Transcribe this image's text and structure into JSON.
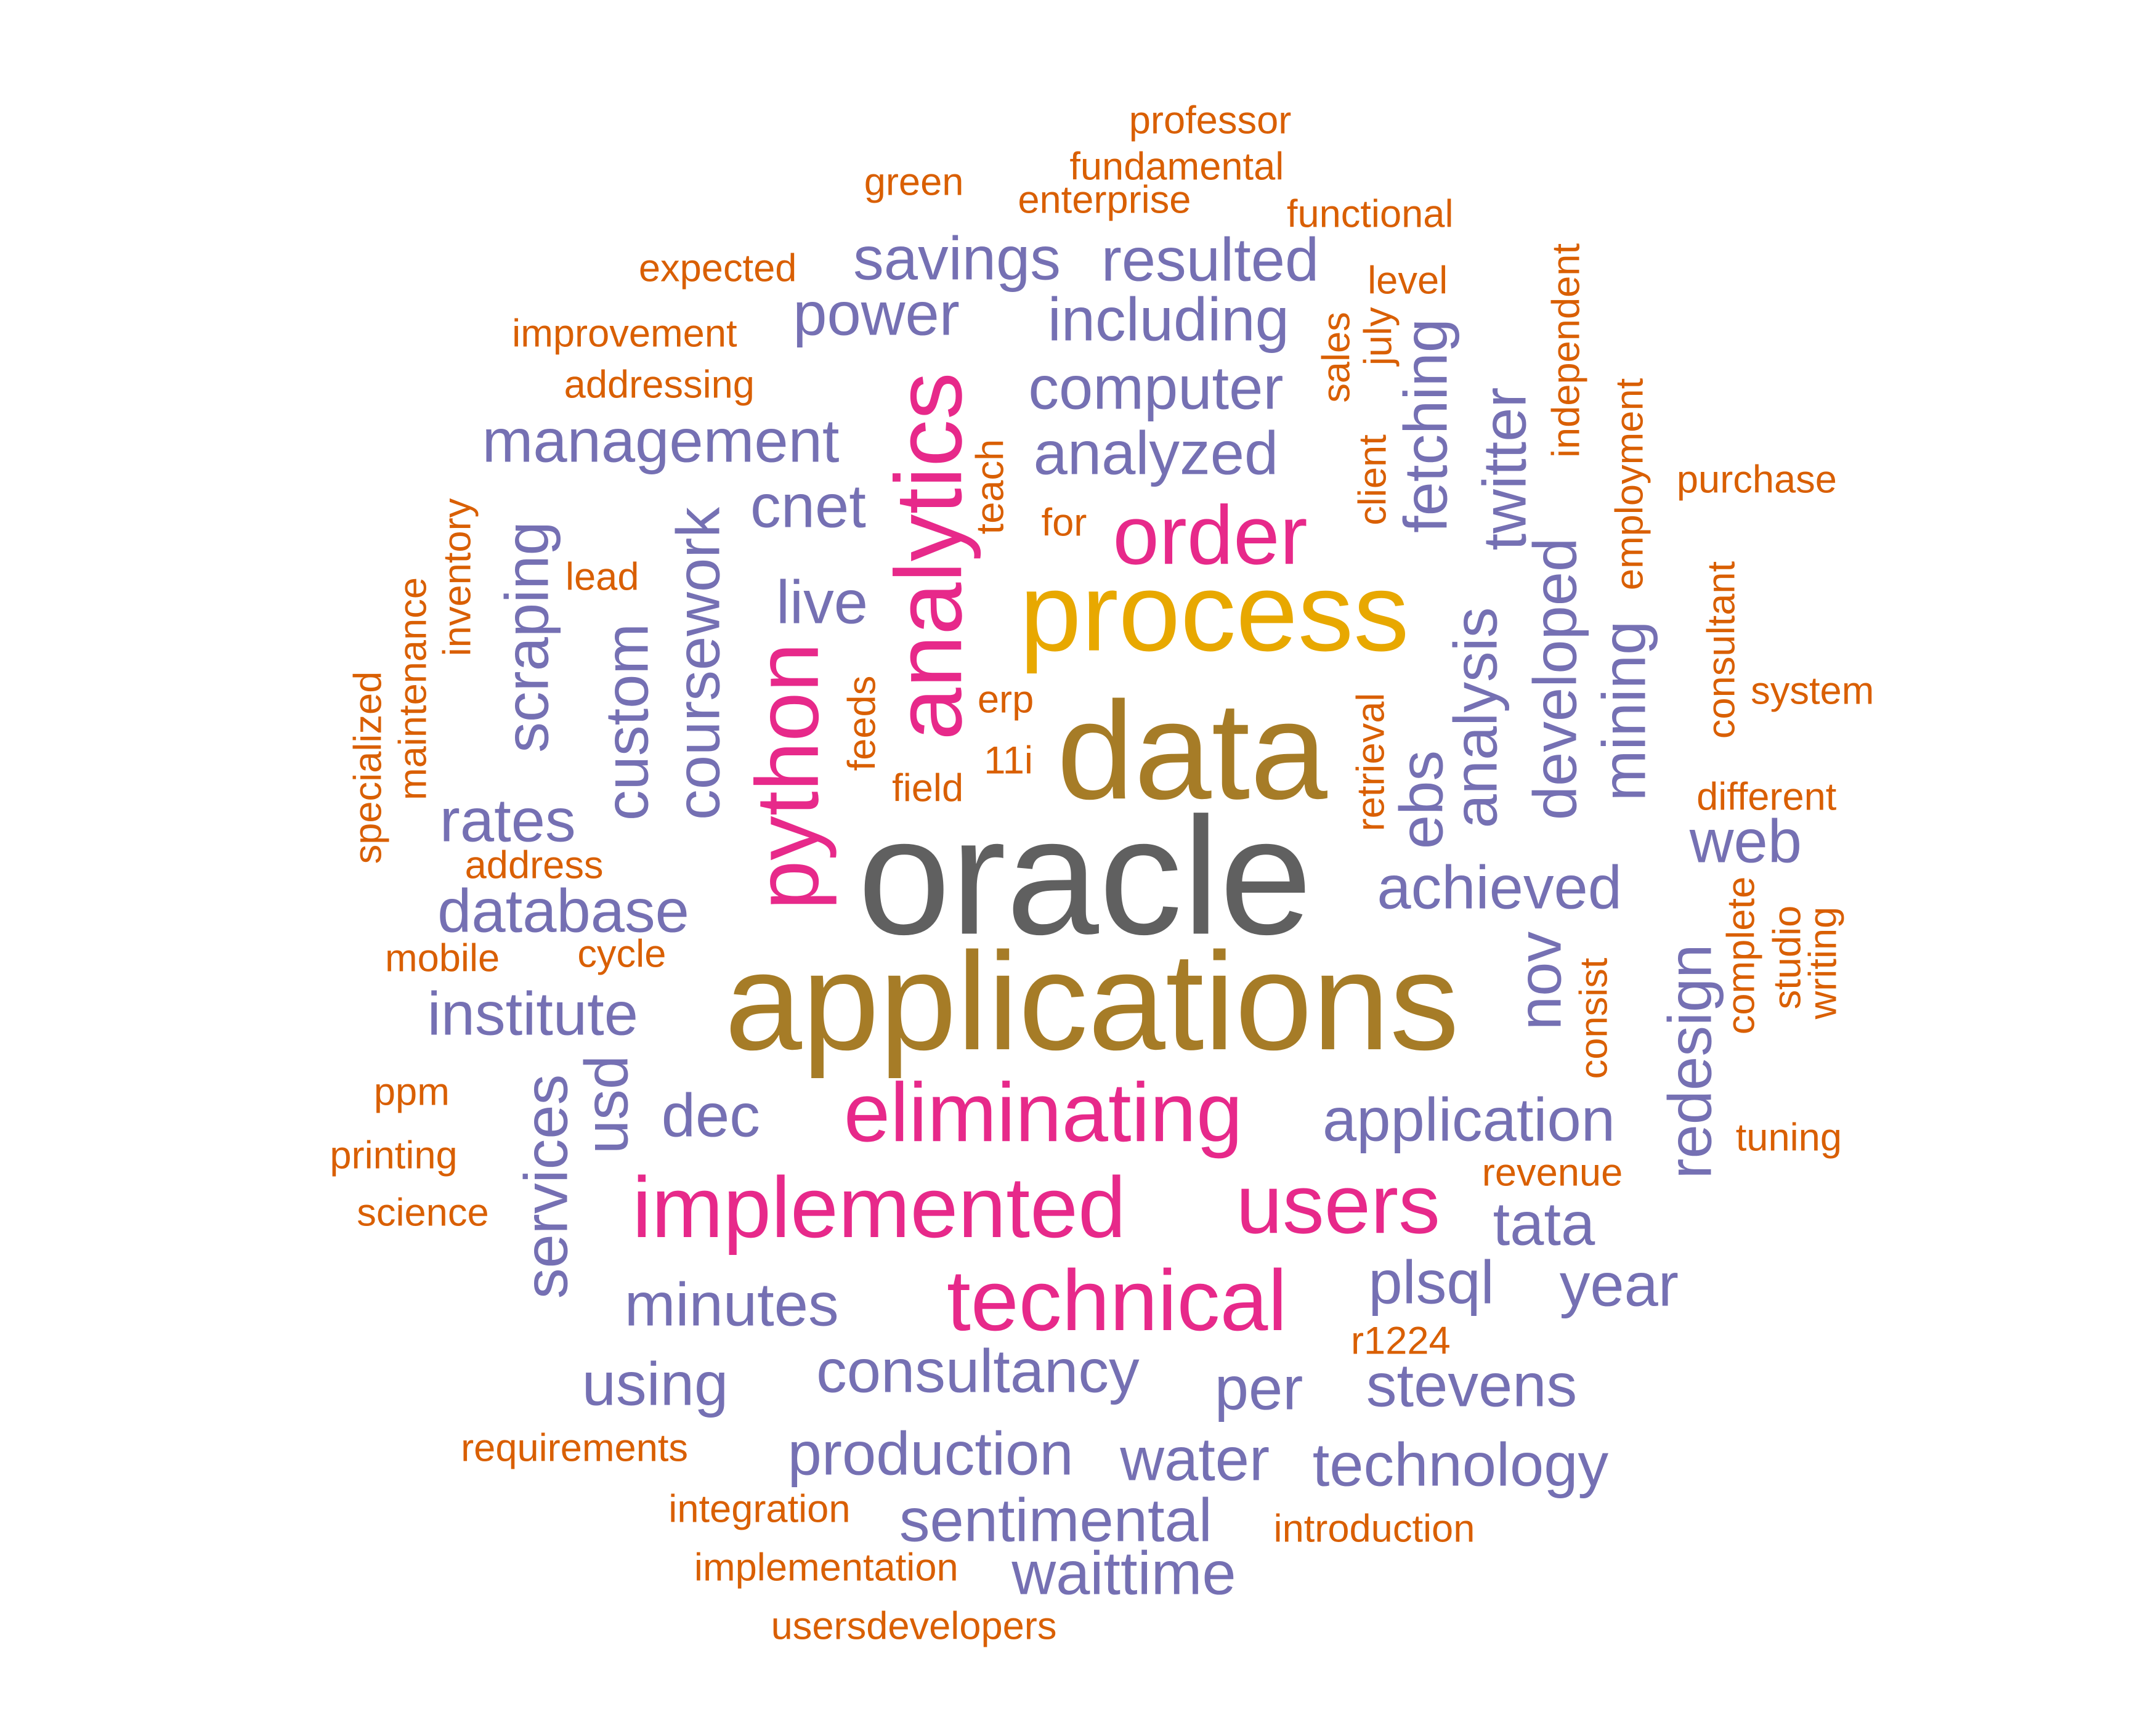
{
  "colors": {
    "gray": "#606060",
    "gold": "#E8A800",
    "olive": "#A67C27",
    "magenta": "#E7298A",
    "purple": "#7570B3",
    "orange": "#D95F02"
  },
  "words": [
    {
      "text": "oracle",
      "color": "gray"
    },
    {
      "text": "applications",
      "color": "olive"
    },
    {
      "text": "data",
      "color": "olive"
    },
    {
      "text": "process",
      "color": "gold"
    },
    {
      "text": "order",
      "color": "magenta"
    },
    {
      "text": "analytics",
      "color": "magenta"
    },
    {
      "text": "python",
      "color": "magenta"
    },
    {
      "text": "eliminating",
      "color": "magenta"
    },
    {
      "text": "implemented",
      "color": "magenta"
    },
    {
      "text": "users",
      "color": "magenta"
    },
    {
      "text": "technical",
      "color": "magenta"
    },
    {
      "text": "savings",
      "color": "purple"
    },
    {
      "text": "resulted",
      "color": "purple"
    },
    {
      "text": "power",
      "color": "purple"
    },
    {
      "text": "including",
      "color": "purple"
    },
    {
      "text": "computer",
      "color": "purple"
    },
    {
      "text": "management",
      "color": "purple"
    },
    {
      "text": "analyzed",
      "color": "purple"
    },
    {
      "text": "cnet",
      "color": "purple"
    },
    {
      "text": "live",
      "color": "purple"
    },
    {
      "text": "fetching",
      "color": "purple"
    },
    {
      "text": "twitter",
      "color": "purple"
    },
    {
      "text": "scraping",
      "color": "purple"
    },
    {
      "text": "custom",
      "color": "purple"
    },
    {
      "text": "coursework",
      "color": "purple"
    },
    {
      "text": "rates",
      "color": "purple"
    },
    {
      "text": "database",
      "color": "purple"
    },
    {
      "text": "institute",
      "color": "purple"
    },
    {
      "text": "ebs",
      "color": "purple"
    },
    {
      "text": "analysis",
      "color": "purple"
    },
    {
      "text": "developed",
      "color": "purple"
    },
    {
      "text": "mining",
      "color": "purple"
    },
    {
      "text": "web",
      "color": "purple"
    },
    {
      "text": "achieved",
      "color": "purple"
    },
    {
      "text": "nov",
      "color": "purple"
    },
    {
      "text": "redesign",
      "color": "purple"
    },
    {
      "text": "services",
      "color": "purple"
    },
    {
      "text": "usd",
      "color": "purple"
    },
    {
      "text": "dec",
      "color": "purple"
    },
    {
      "text": "application",
      "color": "purple"
    },
    {
      "text": "tata",
      "color": "purple"
    },
    {
      "text": "minutes",
      "color": "purple"
    },
    {
      "text": "plsql",
      "color": "purple"
    },
    {
      "text": "year",
      "color": "purple"
    },
    {
      "text": "consultancy",
      "color": "purple"
    },
    {
      "text": "using",
      "color": "purple"
    },
    {
      "text": "per",
      "color": "purple"
    },
    {
      "text": "stevens",
      "color": "purple"
    },
    {
      "text": "production",
      "color": "purple"
    },
    {
      "text": "water",
      "color": "purple"
    },
    {
      "text": "technology",
      "color": "purple"
    },
    {
      "text": "sentimental",
      "color": "purple"
    },
    {
      "text": "waittime",
      "color": "purple"
    },
    {
      "text": "professor",
      "color": "orange"
    },
    {
      "text": "fundamental",
      "color": "orange"
    },
    {
      "text": "green",
      "color": "orange"
    },
    {
      "text": "enterprise",
      "color": "orange"
    },
    {
      "text": "functional",
      "color": "orange"
    },
    {
      "text": "expected",
      "color": "orange"
    },
    {
      "text": "level",
      "color": "orange"
    },
    {
      "text": "improvement",
      "color": "orange"
    },
    {
      "text": "addressing",
      "color": "orange"
    },
    {
      "text": "sales",
      "color": "orange"
    },
    {
      "text": "july",
      "color": "orange"
    },
    {
      "text": "independent",
      "color": "orange"
    },
    {
      "text": "employment",
      "color": "orange"
    },
    {
      "text": "purchase",
      "color": "orange"
    },
    {
      "text": "teach",
      "color": "orange"
    },
    {
      "text": "for",
      "color": "orange"
    },
    {
      "text": "client",
      "color": "orange"
    },
    {
      "text": "inventory",
      "color": "orange"
    },
    {
      "text": "lead",
      "color": "orange"
    },
    {
      "text": "maintenance",
      "color": "orange"
    },
    {
      "text": "specialized",
      "color": "orange"
    },
    {
      "text": "consultant",
      "color": "orange"
    },
    {
      "text": "system",
      "color": "orange"
    },
    {
      "text": "feeds",
      "color": "orange"
    },
    {
      "text": "erp",
      "color": "orange"
    },
    {
      "text": "11i",
      "color": "orange"
    },
    {
      "text": "field",
      "color": "orange"
    },
    {
      "text": "retrieval",
      "color": "orange"
    },
    {
      "text": "different",
      "color": "orange"
    },
    {
      "text": "address",
      "color": "orange"
    },
    {
      "text": "complete",
      "color": "orange"
    },
    {
      "text": "studio",
      "color": "orange"
    },
    {
      "text": "writing",
      "color": "orange"
    },
    {
      "text": "mobile",
      "color": "orange"
    },
    {
      "text": "cycle",
      "color": "orange"
    },
    {
      "text": "consist",
      "color": "orange"
    },
    {
      "text": "ppm",
      "color": "orange"
    },
    {
      "text": "tuning",
      "color": "orange"
    },
    {
      "text": "printing",
      "color": "orange"
    },
    {
      "text": "revenue",
      "color": "orange"
    },
    {
      "text": "science",
      "color": "orange"
    },
    {
      "text": "r1224",
      "color": "orange"
    },
    {
      "text": "requirements",
      "color": "orange"
    },
    {
      "text": "integration",
      "color": "orange"
    },
    {
      "text": "introduction",
      "color": "orange"
    },
    {
      "text": "implementation",
      "color": "orange"
    },
    {
      "text": "usersdevelopers",
      "color": "orange"
    }
  ]
}
